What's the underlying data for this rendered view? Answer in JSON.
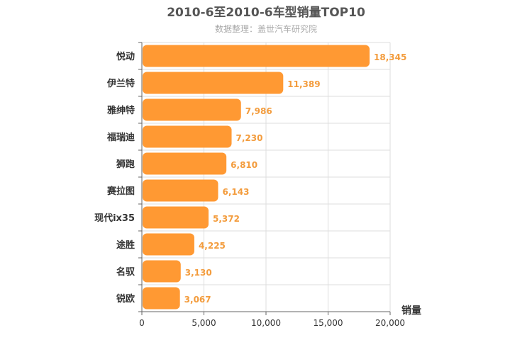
{
  "chart_data": {
    "type": "bar",
    "orientation": "horizontal",
    "title": "2010-6至2010-6车型销量TOP10",
    "subtitle": "数据整理：盖世汽车研究院",
    "xlabel": "销量",
    "categories": [
      "悦动",
      "伊兰特",
      "雅绅特",
      "福瑞迪",
      "狮跑",
      "赛拉图",
      "现代ix35",
      "途胜",
      "名驭",
      "锐欧"
    ],
    "values": [
      18345,
      11389,
      7986,
      7230,
      6810,
      6143,
      5372,
      4225,
      3130,
      3067
    ],
    "value_labels": [
      "18,345",
      "11,389",
      "7,986",
      "7,230",
      "6,810",
      "6,143",
      "5,372",
      "4,225",
      "3,130",
      "3,067"
    ],
    "xlim": [
      0,
      20000
    ],
    "xticks": [
      0,
      5000,
      10000,
      15000,
      20000
    ],
    "xtick_labels": [
      "0",
      "5,000",
      "10,000",
      "15,000",
      "20,000"
    ],
    "grid": true,
    "bar_color": "#ff9933"
  }
}
